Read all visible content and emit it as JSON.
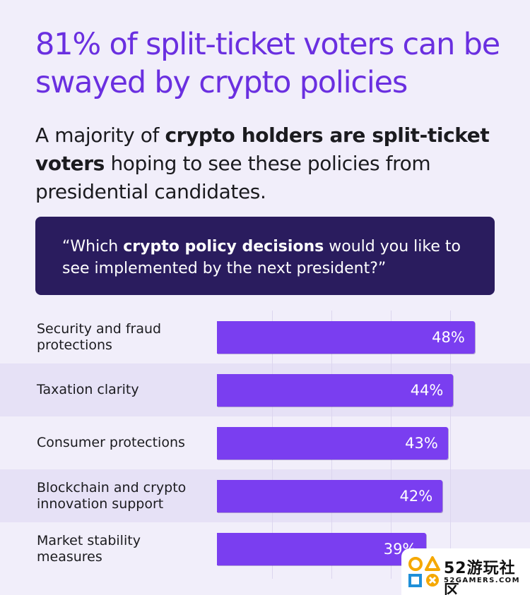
{
  "headline": "81% of split-ticket voters can be swayed by crypto policies",
  "subhead": {
    "part1": "A majority of ",
    "bold": "crypto holders are split-ticket voters",
    "part2": " hoping to see these policies from presidential candidates."
  },
  "question": {
    "part1": "“Which ",
    "bold": "crypto policy decisions",
    "part2": " would you like to see implemented by the next president?”"
  },
  "colors": {
    "headline": "#6a2fe0",
    "bar": "#7a3ef0",
    "question_bg": "#2a1c5e",
    "background": "#f1eefa"
  },
  "chart_data": {
    "type": "bar",
    "orientation": "horizontal",
    "categories": [
      "Security and fraud protections",
      "Taxation clarity",
      "Consumer protections",
      "Blockchain and crypto innovation support",
      "Market stability measures"
    ],
    "values": [
      48,
      44,
      43,
      42,
      39
    ],
    "value_labels": [
      "48%",
      "44%",
      "43%",
      "42%",
      "39%"
    ],
    "unit": "%",
    "xlim": [
      0,
      55
    ],
    "grid": true,
    "legend": "none"
  },
  "watermark": {
    "brand": "52游玩社区",
    "domain": "52GAMERS.COM"
  }
}
